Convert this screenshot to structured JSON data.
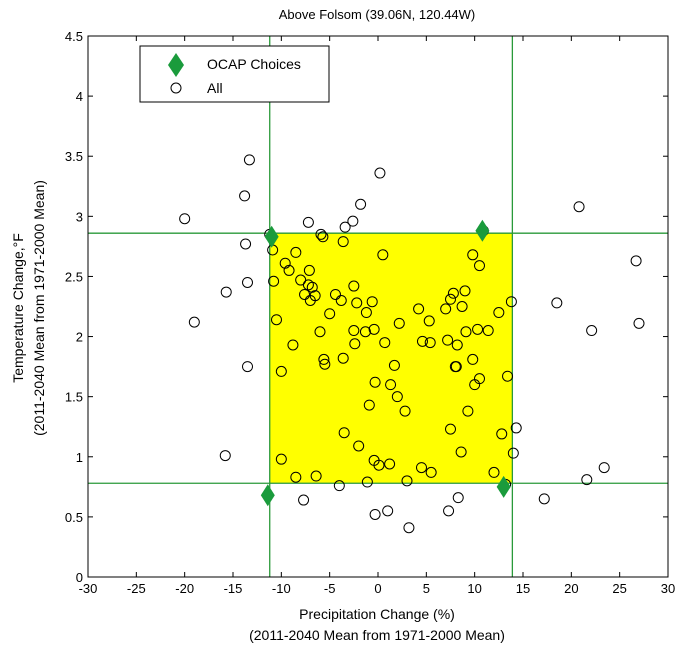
{
  "chart_data": {
    "type": "scatter",
    "title": "Above Folsom (39.06N, 120.44W)",
    "xlabel": "Precipitation Change (%)",
    "xlabel2": "(2011-2040 Mean from 1971-2000 Mean)",
    "ylabel": "Temperature Change,°F",
    "ylabel2": "(2011-2040 Mean from 1971-2000 Mean)",
    "xlim": [
      -30,
      30
    ],
    "ylim": [
      0,
      4.5
    ],
    "xticks": [
      -30,
      -25,
      -20,
      -15,
      -10,
      -5,
      0,
      5,
      10,
      15,
      20,
      25,
      30
    ],
    "yticks": [
      0,
      0.5,
      1,
      1.5,
      2,
      2.5,
      3,
      3.5,
      4,
      4.5
    ],
    "xtick_labels": [
      "-30",
      "-25",
      "-20",
      "-15",
      "-10",
      "-5",
      "0",
      "5",
      "10",
      "15",
      "20",
      "25",
      "30"
    ],
    "ytick_labels": [
      "0",
      "0.5",
      "1",
      "1.5",
      "2",
      "2.5",
      "3",
      "3.5",
      "4",
      "4.5"
    ],
    "grid": false,
    "legend_position": "top-left",
    "region": {
      "x": [
        -11.2,
        13.9
      ],
      "y": [
        0.78,
        2.86
      ],
      "color": "#ffff00"
    },
    "reference_lines": {
      "x": [
        -11.2,
        13.9
      ],
      "y": [
        0.78,
        2.86
      ],
      "color": "#2a9a3a"
    },
    "series": [
      {
        "name": "OCAP Choices",
        "marker": "diamond",
        "color": "#1a9b3c",
        "points": [
          [
            -11.0,
            2.83
          ],
          [
            10.8,
            2.88
          ],
          [
            -11.4,
            0.68
          ],
          [
            13.0,
            0.75
          ]
        ]
      },
      {
        "name": "All",
        "marker": "open-circle",
        "color": "#000000",
        "points": [
          [
            -20.0,
            2.98
          ],
          [
            -19.0,
            2.12
          ],
          [
            -15.7,
            2.37
          ],
          [
            -15.8,
            1.01
          ],
          [
            -13.8,
            3.17
          ],
          [
            -13.3,
            3.47
          ],
          [
            -13.7,
            2.77
          ],
          [
            -13.5,
            2.45
          ],
          [
            -13.5,
            1.75
          ],
          [
            -11.2,
            2.85
          ],
          [
            -10.9,
            2.72
          ],
          [
            -10.8,
            2.46
          ],
          [
            -10.5,
            2.14
          ],
          [
            -10.0,
            1.71
          ],
          [
            -10.0,
            0.98
          ],
          [
            -9.6,
            2.61
          ],
          [
            -9.2,
            2.55
          ],
          [
            -8.8,
            1.93
          ],
          [
            -8.5,
            2.7
          ],
          [
            -8.5,
            0.83
          ],
          [
            -8.0,
            2.47
          ],
          [
            -7.6,
            2.35
          ],
          [
            -7.7,
            0.64
          ],
          [
            -7.2,
            2.95
          ],
          [
            -7.2,
            2.43
          ],
          [
            -7.1,
            2.55
          ],
          [
            -7.0,
            2.3
          ],
          [
            -6.8,
            2.41
          ],
          [
            -6.5,
            2.34
          ],
          [
            -6.4,
            0.84
          ],
          [
            -6.0,
            2.04
          ],
          [
            -5.9,
            2.85
          ],
          [
            -5.7,
            2.83
          ],
          [
            -5.6,
            1.81
          ],
          [
            -5.5,
            1.77
          ],
          [
            -5.0,
            2.19
          ],
          [
            -4.4,
            2.35
          ],
          [
            -4.0,
            0.76
          ],
          [
            -3.8,
            2.3
          ],
          [
            -3.6,
            2.79
          ],
          [
            -3.6,
            1.82
          ],
          [
            -3.5,
            1.2
          ],
          [
            -3.4,
            2.91
          ],
          [
            -2.6,
            2.96
          ],
          [
            -2.5,
            2.42
          ],
          [
            -2.5,
            2.05
          ],
          [
            -2.4,
            1.94
          ],
          [
            -2.2,
            2.28
          ],
          [
            -2.0,
            1.09
          ],
          [
            -1.8,
            3.1
          ],
          [
            -1.3,
            2.04
          ],
          [
            -1.2,
            2.2
          ],
          [
            -1.1,
            0.79
          ],
          [
            -0.9,
            1.43
          ],
          [
            -0.6,
            2.29
          ],
          [
            -0.4,
            2.06
          ],
          [
            -0.4,
            0.97
          ],
          [
            -0.3,
            1.62
          ],
          [
            -0.3,
            0.52
          ],
          [
            0.1,
            0.93
          ],
          [
            0.2,
            3.36
          ],
          [
            0.5,
            2.68
          ],
          [
            0.7,
            1.95
          ],
          [
            1.0,
            0.55
          ],
          [
            1.2,
            0.94
          ],
          [
            1.3,
            1.6
          ],
          [
            1.7,
            1.76
          ],
          [
            2.0,
            1.5
          ],
          [
            2.2,
            2.11
          ],
          [
            2.8,
            1.38
          ],
          [
            3.0,
            0.8
          ],
          [
            3.2,
            0.41
          ],
          [
            4.2,
            2.23
          ],
          [
            4.5,
            0.91
          ],
          [
            4.6,
            1.96
          ],
          [
            5.3,
            2.13
          ],
          [
            5.4,
            1.95
          ],
          [
            5.5,
            0.87
          ],
          [
            7.0,
            2.23
          ],
          [
            7.2,
            1.97
          ],
          [
            7.3,
            0.55
          ],
          [
            7.5,
            2.31
          ],
          [
            7.5,
            1.23
          ],
          [
            7.8,
            2.36
          ],
          [
            8.0,
            1.75
          ],
          [
            8.1,
            1.75
          ],
          [
            8.2,
            1.93
          ],
          [
            8.3,
            0.66
          ],
          [
            8.6,
            1.04
          ],
          [
            8.7,
            2.25
          ],
          [
            9.0,
            2.38
          ],
          [
            9.1,
            2.04
          ],
          [
            9.3,
            1.38
          ],
          [
            9.8,
            2.68
          ],
          [
            9.8,
            1.81
          ],
          [
            10.0,
            1.6
          ],
          [
            10.3,
            2.06
          ],
          [
            10.5,
            2.59
          ],
          [
            10.5,
            1.65
          ],
          [
            10.9,
            2.88
          ],
          [
            11.4,
            2.05
          ],
          [
            12.0,
            0.87
          ],
          [
            12.5,
            2.2
          ],
          [
            12.8,
            1.19
          ],
          [
            13.2,
            0.77
          ],
          [
            13.4,
            1.67
          ],
          [
            13.8,
            2.29
          ],
          [
            14.0,
            1.03
          ],
          [
            14.3,
            1.24
          ],
          [
            17.2,
            0.65
          ],
          [
            18.5,
            2.28
          ],
          [
            20.8,
            3.08
          ],
          [
            21.6,
            0.81
          ],
          [
            22.1,
            2.05
          ],
          [
            23.4,
            0.91
          ],
          [
            26.7,
            2.63
          ],
          [
            27.0,
            2.11
          ]
        ]
      }
    ]
  }
}
